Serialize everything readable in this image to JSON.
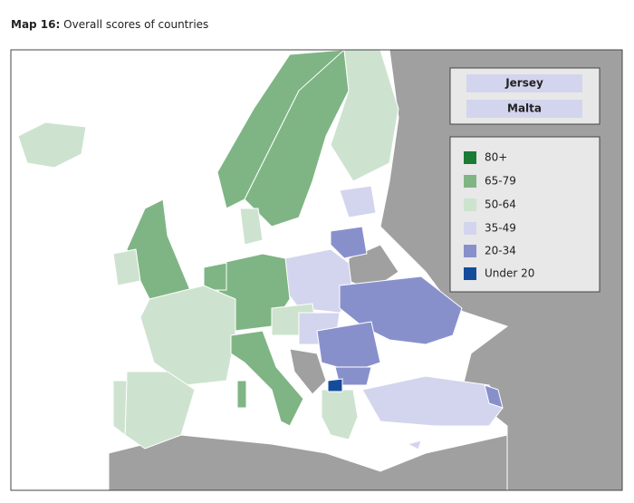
{
  "header": {
    "label": "Map 16:",
    "title": "Overall scores of countries"
  },
  "insets": [
    "Jersey",
    "Malta"
  ],
  "legend": [
    {
      "label": "80+",
      "color": "#1b7b34"
    },
    {
      "label": "65-79",
      "color": "#7fb584"
    },
    {
      "label": "50-64",
      "color": "#cde3cf"
    },
    {
      "label": "35-49",
      "color": "#d3d5ee"
    },
    {
      "label": "20-34",
      "color": "#8890cc"
    },
    {
      "label": "Under 20",
      "color": "#144c9c"
    }
  ]
}
